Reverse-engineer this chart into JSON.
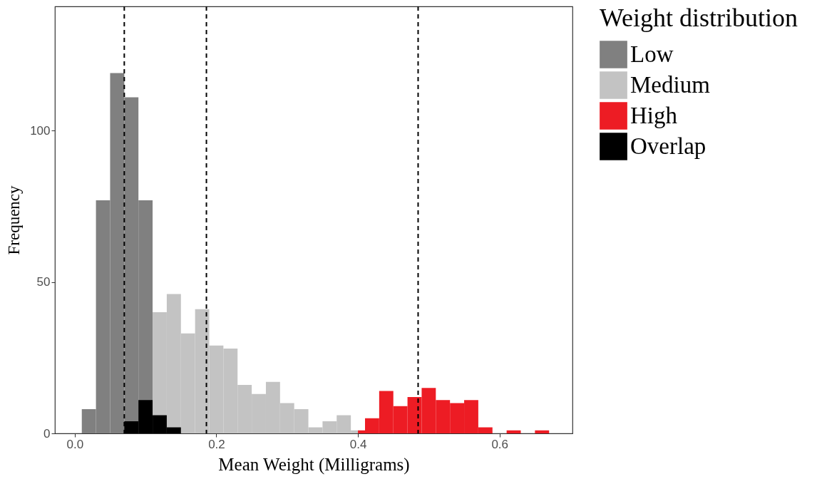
{
  "chart_data": {
    "type": "histogram",
    "xlabel": "Mean Weight (Milligrams)",
    "ylabel": "Frequency",
    "legend_title": "Weight distribution",
    "legend": "right",
    "grid": false,
    "xlim": [
      -0.028,
      0.703
    ],
    "ylim": [
      0,
      141
    ],
    "xticks": [
      {
        "value": 0,
        "label": "0.0"
      },
      0.2,
      0.4,
      0.6
    ],
    "yticks": [
      0,
      50,
      100
    ],
    "bins": [
      0.01,
      0.03,
      0.05,
      0.07,
      0.09,
      0.11,
      0.13,
      0.15,
      0.17,
      0.19,
      0.21,
      0.23,
      0.25,
      0.27,
      0.29,
      0.31,
      0.33,
      0.35,
      0.37,
      0.39,
      0.4,
      0.41,
      0.43,
      0.45,
      0.47,
      0.49,
      0.51,
      0.53,
      0.55,
      0.57,
      0.59,
      0.61,
      0.63,
      0.65,
      0.67
    ],
    "series": [
      {
        "name": "Low",
        "color": "#808080",
        "values": [
          8,
          77,
          119,
          111,
          77,
          null,
          null,
          null,
          null,
          null,
          null,
          null,
          null,
          null,
          null,
          null,
          null,
          null,
          null,
          null,
          null,
          null,
          null,
          null,
          null,
          null,
          null,
          null,
          null,
          null,
          null,
          null,
          null,
          null
        ]
      },
      {
        "name": "Medium",
        "color": "#c3c3c3",
        "values": [
          null,
          null,
          null,
          null,
          null,
          40,
          46,
          33,
          41,
          29,
          28,
          16,
          13,
          17,
          10,
          8,
          2,
          4,
          6,
          1,
          null,
          null,
          null,
          null,
          null,
          null,
          null,
          null,
          null,
          null,
          null,
          null,
          null,
          null
        ]
      },
      {
        "name": "High",
        "color": "#ed1c24",
        "values": [
          null,
          null,
          null,
          null,
          null,
          null,
          null,
          null,
          null,
          null,
          null,
          null,
          null,
          null,
          null,
          null,
          null,
          null,
          null,
          null,
          1,
          5,
          14,
          9,
          12,
          15,
          11,
          10,
          11,
          2,
          0,
          1,
          0,
          1
        ]
      },
      {
        "name": "Overlap",
        "color": "#000000",
        "values": [
          null,
          null,
          null,
          4,
          11,
          6,
          2,
          null,
          null,
          null,
          null,
          null,
          null,
          null,
          null,
          null,
          null,
          null,
          null,
          null,
          null,
          null,
          null,
          null,
          null,
          null,
          null,
          null,
          null,
          null,
          null,
          null,
          null,
          null
        ]
      }
    ],
    "ref_lines": [
      {
        "axis": "x",
        "value": 0.07,
        "line_style": "dashed"
      },
      {
        "axis": "x",
        "value": 0.186,
        "line_style": "dashed"
      },
      {
        "axis": "x",
        "value": 0.485,
        "line_style": "dashed"
      }
    ]
  }
}
